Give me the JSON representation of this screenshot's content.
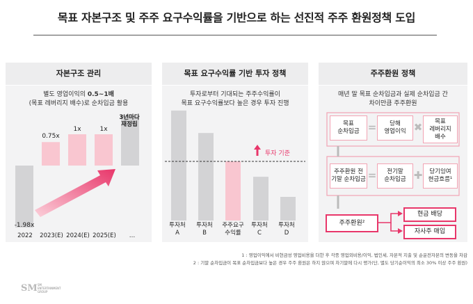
{
  "title": "목표 자본구조 및 주주 요구수익률을 기반으로 하는 선진적 주주 환원정책 도입",
  "panel1": {
    "heading": "자본구조 관리",
    "sub1_prefix": "별도 영업이익의 ",
    "sub1_bold": "0.5~1배",
    "sub2": "(목표 레버리지 배수)로 순차입금 활용",
    "bars": [
      {
        "label": "-1.98x",
        "value": -1.98,
        "category": "2022"
      },
      {
        "label": "0.75x",
        "value": 0.75,
        "category": "2023(E)"
      },
      {
        "label": "1x",
        "value": 1,
        "category": "2024(E)"
      },
      {
        "label": "1x",
        "value": 1,
        "category": "2025(E)"
      },
      {
        "label": "3년마다 재정립",
        "value": 1.6,
        "category": "…"
      }
    ],
    "last_label_1": "3년마다",
    "last_label_2": "재정립"
  },
  "panel2": {
    "heading": "목표 요구수익률 기반 투자 정책",
    "sub1": "투자로부터 기대되는 주주수익률이",
    "sub2": "목표 요구수익률보다 높은 경우 투자 진행",
    "threshold_label": "투자 기준",
    "threshold_value": 0.5,
    "bars": [
      {
        "l1": "투자처",
        "l2": "A",
        "value": 0.93
      },
      {
        "l1": "투자처",
        "l2": "B",
        "value": 0.74
      },
      {
        "l1": "주주요구",
        "l2": "수익률",
        "value": 0.5
      },
      {
        "l1": "투자처",
        "l2": "C",
        "value": 0.37
      },
      {
        "l1": "투자처",
        "l2": "D",
        "value": 0.2
      }
    ]
  },
  "panel3": {
    "heading": "주주환원 정책",
    "sub1": "매년 말 목표 순차입금과 실제 순차입금 간",
    "sub2": "차이만큼 주주환원",
    "row1": {
      "a1": "목표",
      "a2": "순차입금",
      "b1": "당해",
      "b2": "영업이익",
      "c1": "목표",
      "c2": "레버리지",
      "c3": "배수"
    },
    "row2": {
      "a1": "주주환원 전",
      "a2": "기말 순차입금",
      "b1": "전기말",
      "b2": "순차입금",
      "c1": "당기잉여",
      "c2": "현금흐름¹"
    },
    "result": "주주환원²",
    "out1": "현금 배당",
    "out2": "자사주 매입"
  },
  "footnotes": {
    "f1": "1 : 영업이익에서 비현금성 영업비용을 더한 후 각종 영업외비용/이익, 법인세, 자본적 지출 및 순운전자본의 변동을 차감",
    "f2": "2 : 기말 순차입금이 목표 순차입금보다 높은 경우 주주 환원은 하지 않으며 차기말에 다시 평가(단, 별도 당기순이익의 최소 30% 이상 주주 환원)"
  },
  "logo": {
    "l1": "SM",
    "l2": "ENTERTAINMENT",
    "l3": "GROUP"
  },
  "colors": {
    "pink": "#f9c6d0",
    "gray_bar": "#d3d3d5",
    "accent": "#e8366a"
  }
}
